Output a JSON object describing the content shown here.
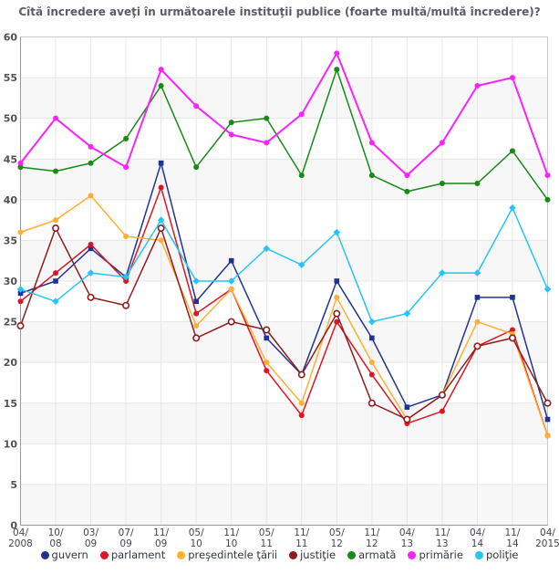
{
  "title": "Cîtă încredere aveţi în următoarele instituţii publice (foarte multă/multă încredere)?",
  "chart_data": {
    "type": "line",
    "x_categories": [
      [
        "04/",
        "2008"
      ],
      [
        "10/",
        "08"
      ],
      [
        "03/",
        "09"
      ],
      [
        "07/",
        "09"
      ],
      [
        "11/",
        "09"
      ],
      [
        "05/",
        "10"
      ],
      [
        "11/",
        "10"
      ],
      [
        "05/",
        "11"
      ],
      [
        "11/",
        "11"
      ],
      [
        "05/",
        "12"
      ],
      [
        "11/",
        "12"
      ],
      [
        "04/",
        "13"
      ],
      [
        "11/",
        "13"
      ],
      [
        "04/",
        "14"
      ],
      [
        "11/",
        "14"
      ],
      [
        "04/",
        "2015"
      ]
    ],
    "ylim": [
      0,
      60
    ],
    "ytick_step": 5,
    "grid": true,
    "legend_position": "bottom",
    "plot_colors": {
      "stripe": "#f7f7f7",
      "gridline": "#e6e6e6",
      "border": "#c9c9c9",
      "axis": "#9a9a9a",
      "ytick_text": "#55504f",
      "xtick_text": "#454550"
    },
    "series": [
      {
        "name": "guvern",
        "color": "#203394",
        "marker": "square",
        "values": [
          28.5,
          30,
          34,
          30.5,
          44.5,
          27.5,
          32.5,
          23,
          18.5,
          30,
          23,
          14.5,
          16,
          28,
          28,
          13
        ]
      },
      {
        "name": "parlament",
        "color": "#dd1522",
        "marker": "circle",
        "values": [
          27.5,
          31,
          34.5,
          30,
          41.5,
          26,
          29,
          19,
          13.5,
          25,
          18.5,
          12.5,
          14,
          22,
          24,
          11
        ]
      },
      {
        "name": "preşedintele ţării",
        "color": "#ffaf31",
        "marker": "circle",
        "values": [
          36,
          37.5,
          40.5,
          35.5,
          35,
          24.5,
          29,
          20,
          15,
          28,
          20,
          13,
          16,
          25,
          23.5,
          11
        ]
      },
      {
        "name": "justiţie",
        "color": "#8e1c1c",
        "marker": "open-circle",
        "values": [
          24.5,
          36.5,
          28,
          27,
          36.5,
          23,
          25,
          24,
          18.5,
          26,
          15,
          13,
          16,
          22,
          23,
          15
        ]
      },
      {
        "name": "armată",
        "color": "#178a17",
        "marker": "circle",
        "values": [
          44,
          43.5,
          44.5,
          47.5,
          54,
          44,
          49.5,
          50,
          43,
          56,
          43,
          41,
          42,
          42,
          46,
          40
        ]
      },
      {
        "name": "primărie",
        "color": "#fb22fb",
        "marker": "circle",
        "values": [
          44.5,
          50,
          46.5,
          44,
          56,
          51.5,
          48,
          47,
          50.5,
          58,
          47,
          43,
          47,
          54,
          55,
          43
        ]
      },
      {
        "name": "poliţie",
        "color": "#27c5f6",
        "marker": "diamond",
        "values": [
          29,
          27.5,
          31,
          30.5,
          37.5,
          30,
          30,
          34,
          32,
          36,
          25,
          26,
          31,
          31,
          39,
          29
        ]
      }
    ]
  }
}
